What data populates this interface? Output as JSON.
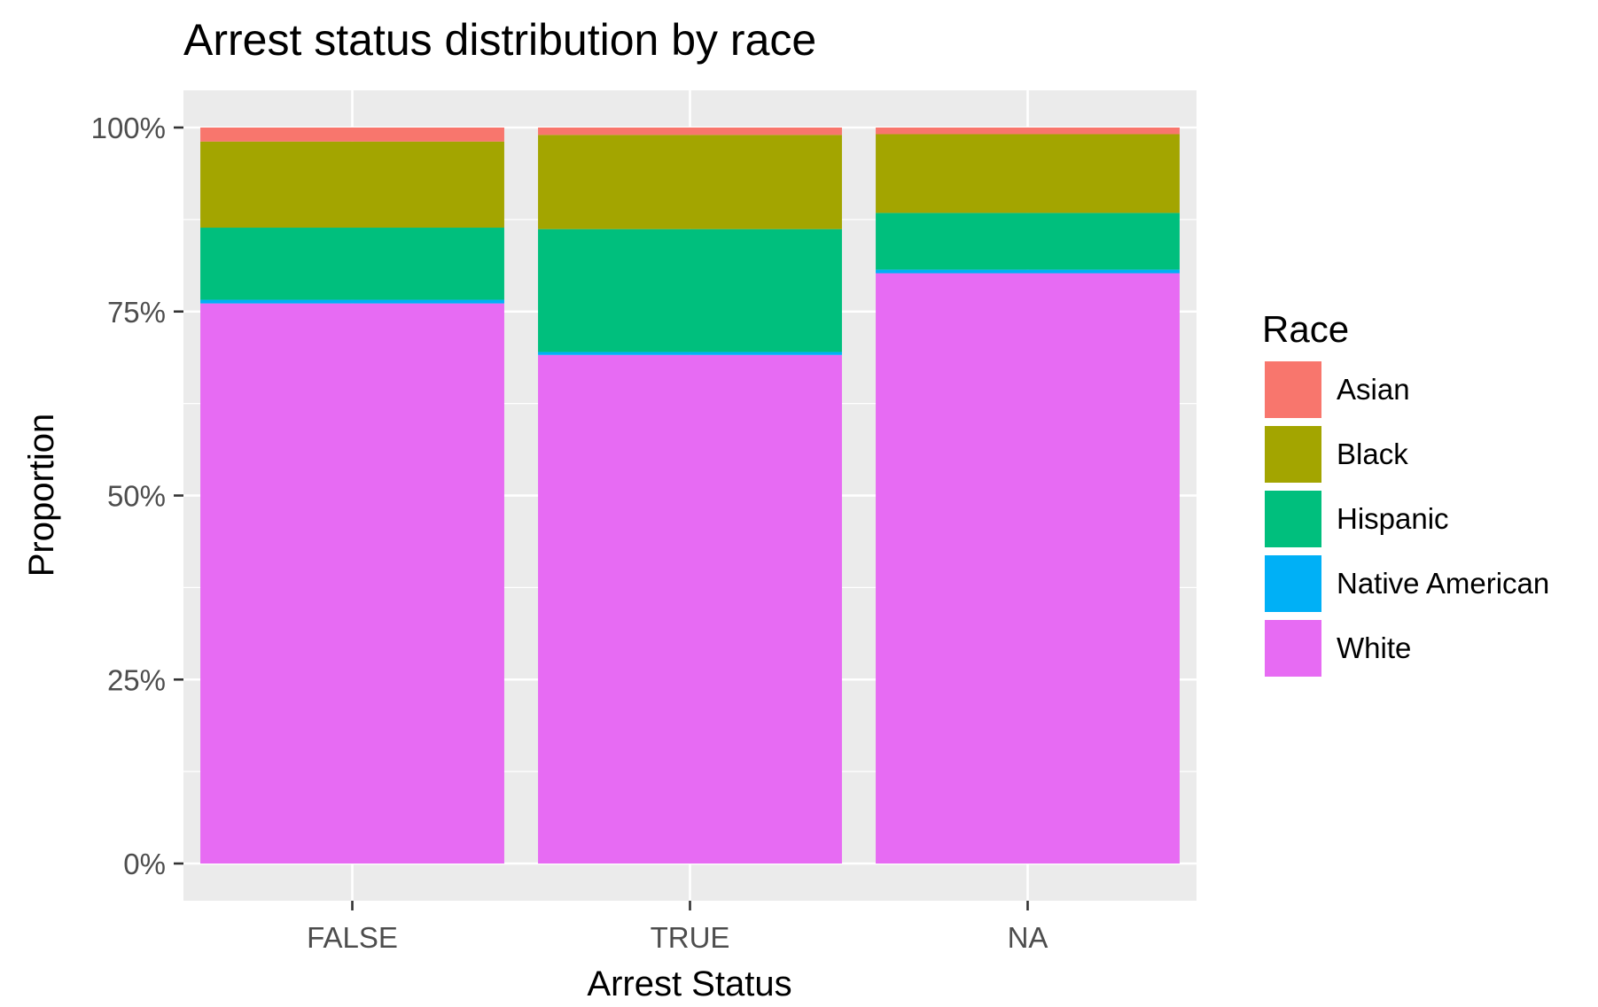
{
  "chart_data": {
    "type": "bar",
    "stacked": true,
    "title": "Arrest status distribution by race",
    "xlabel": "Arrest Status",
    "ylabel": "Proportion",
    "categories": [
      "FALSE",
      "TRUE",
      "NA"
    ],
    "ylim": [
      0,
      1
    ],
    "yticks": [
      0,
      0.25,
      0.5,
      0.75,
      1
    ],
    "ytick_labels": [
      "0%",
      "25%",
      "50%",
      "75%",
      "100%"
    ],
    "grid": true,
    "legend": {
      "title": "Race",
      "position": "right"
    },
    "series": [
      {
        "name": "White",
        "color": "#E76BF3",
        "values": [
          0.761,
          0.691,
          0.802
        ]
      },
      {
        "name": "Native American",
        "color": "#00B0F6",
        "values": [
          0.005,
          0.004,
          0.005
        ]
      },
      {
        "name": "Hispanic",
        "color": "#00BF7D",
        "values": [
          0.098,
          0.167,
          0.077
        ]
      },
      {
        "name": "Black",
        "color": "#A3A500",
        "values": [
          0.117,
          0.128,
          0.107
        ]
      },
      {
        "name": "Asian",
        "color": "#F8766D",
        "values": [
          0.019,
          0.01,
          0.009
        ]
      }
    ],
    "legend_order": [
      "Asian",
      "Black",
      "Hispanic",
      "Native American",
      "White"
    ]
  }
}
